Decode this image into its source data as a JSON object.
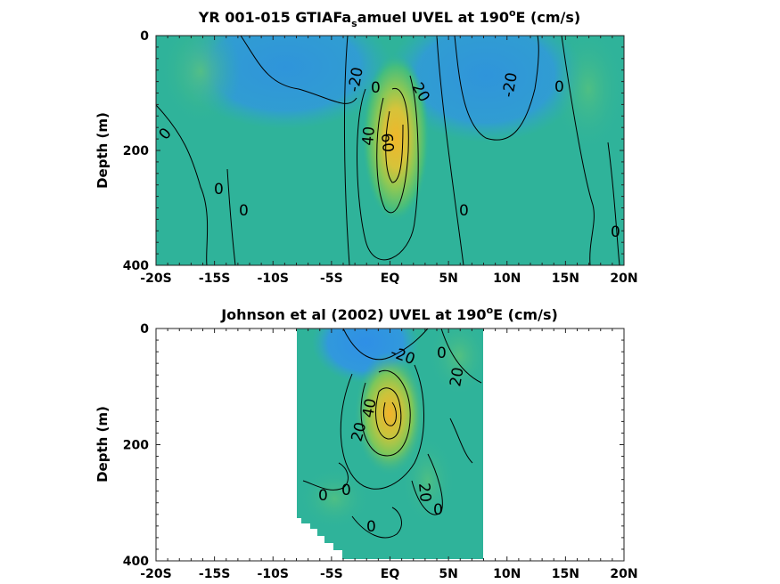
{
  "chart_data": [
    {
      "type": "heatmap",
      "title": "YR 001-015 GTIAFa",
      "title_subscript": "s",
      "title_rest": "amuel UVEL at 190",
      "title_degree": "o",
      "title_end": "E (cm/s)",
      "xlabel": "",
      "ylabel": "Depth (m)",
      "xlim": [
        -20,
        20
      ],
      "ylim": [
        400,
        0
      ],
      "x_tick_labels": [
        "-20S",
        "-15S",
        "-10S",
        "-5S",
        "EQ",
        "5N",
        "10N",
        "15N",
        "20N"
      ],
      "x_tick_values": [
        -20,
        -15,
        -10,
        -5,
        0,
        5,
        10,
        15,
        20
      ],
      "y_tick_labels": [
        "0",
        "200",
        "400"
      ],
      "y_tick_values": [
        0,
        200,
        400
      ],
      "contour_labels": [
        "-20",
        "20",
        "0",
        "-20",
        "0",
        "0",
        "40",
        "60",
        "0",
        "0",
        "0",
        "0"
      ],
      "features": [
        {
          "name": "equatorial-undercurrent",
          "lon": 0.5,
          "depth": 150,
          "max_value": 60
        }
      ],
      "data_extent_lat": [
        -20,
        20
      ]
    },
    {
      "type": "heatmap",
      "title": "Johnson et al (2002) UVEL at 190",
      "title_degree": "o",
      "title_end": "E (cm/s)",
      "xlabel": "",
      "ylabel": "Depth (m)",
      "xlim": [
        -20,
        20
      ],
      "ylim": [
        400,
        0
      ],
      "x_tick_labels": [
        "-20S",
        "-15S",
        "-10S",
        "-5S",
        "EQ",
        "5N",
        "10N",
        "15N",
        "20N"
      ],
      "x_tick_values": [
        -20,
        -15,
        -10,
        -5,
        0,
        5,
        10,
        15,
        20
      ],
      "y_tick_labels": [
        "0",
        "200",
        "400"
      ],
      "y_tick_values": [
        0,
        200,
        400
      ],
      "contour_labels": [
        "-20",
        "20",
        "40",
        "20",
        "0",
        "0",
        "0",
        "0",
        "20",
        "0"
      ],
      "features": [
        {
          "name": "equatorial-undercurrent",
          "lon": 0,
          "depth": 150,
          "max_value": 60
        }
      ],
      "data_extent_lat": [
        -8,
        8
      ]
    }
  ]
}
